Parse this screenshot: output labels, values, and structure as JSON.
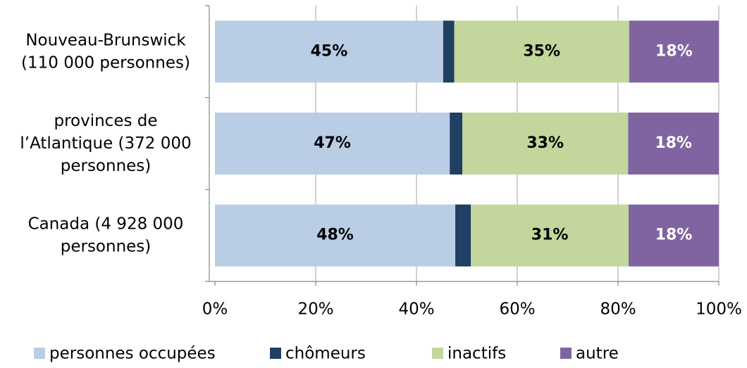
{
  "chart_data": {
    "type": "stacked-barh",
    "categories": [
      "Nouveau-Brunswick\n(110 000 personnes)",
      "provinces de\nl’Atlantique (372 000\npersonnes)",
      "Canada (4 928 000\npersonnes)"
    ],
    "series": [
      {
        "name": "personnes occupées",
        "color": "#b9cde5",
        "values": [
          45.3,
          46.6,
          47.7
        ],
        "value_labels": [
          "45%",
          "47%",
          "48%"
        ]
      },
      {
        "name": "chômeurs",
        "color": "#1f3f63",
        "values": [
          2.2,
          2.5,
          3.1
        ],
        "value_labels": [
          null,
          "...",
          null
        ]
      },
      {
        "name": "inactifs",
        "color": "#c3d69b",
        "values": [
          34.7,
          32.9,
          31.3
        ],
        "value_labels": [
          "35%",
          "33%",
          "31%"
        ]
      },
      {
        "name": "autre",
        "color": "#8064a2",
        "values": [
          17.8,
          18.0,
          17.9
        ],
        "value_labels": [
          "18%",
          "18%",
          "18%"
        ]
      }
    ],
    "xlim": [
      0,
      100
    ],
    "xticks": [
      {
        "value": 0,
        "label": "0%"
      },
      {
        "value": 20,
        "label": "20%"
      },
      {
        "value": 40,
        "label": "40%"
      },
      {
        "value": 60,
        "label": "60%"
      },
      {
        "value": 80,
        "label": "80%"
      },
      {
        "value": 100,
        "label": "100%"
      }
    ],
    "grid": true,
    "legend": "bottom"
  }
}
